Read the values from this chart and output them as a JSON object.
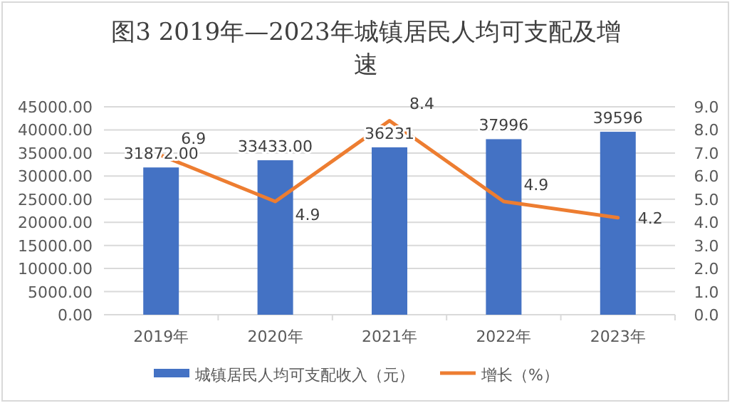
{
  "chart_data": {
    "type": "bar",
    "title": "图3 2019年—2023年城镇居民人均可支配及增速",
    "categories": [
      "2019年",
      "2020年",
      "2021年",
      "2022年",
      "2023年"
    ],
    "series": [
      {
        "name": "城镇居民人均可支配收入（元）",
        "color": "#4472c4",
        "values": [
          31872,
          33433,
          36231,
          37996,
          39596
        ],
        "value_labels": [
          "31872.00",
          "33433.00",
          "36231",
          "37996",
          "39596"
        ]
      },
      {
        "name": "增长（%）",
        "type": "line",
        "axis": "y2",
        "color": "#ed7d31",
        "values": [
          6.9,
          4.9,
          8.4,
          4.9,
          4.2
        ],
        "value_labels": [
          "6.9",
          "4.9",
          "8.4",
          "4.9",
          "4.2"
        ]
      }
    ],
    "ylim": [
      0,
      45000
    ],
    "yticks": [
      {
        "value": 0,
        "label": "0.00"
      },
      {
        "value": 5000,
        "label": "5000.00"
      },
      {
        "value": 10000,
        "label": "10000.00"
      },
      {
        "value": 15000,
        "label": "15000.00"
      },
      {
        "value": 20000,
        "label": "20000.00"
      },
      {
        "value": 25000,
        "label": "25000.00"
      },
      {
        "value": 30000,
        "label": "30000.00"
      },
      {
        "value": 35000,
        "label": "35000.00"
      },
      {
        "value": 40000,
        "label": "40000.00"
      },
      {
        "value": 45000,
        "label": "45000.00"
      }
    ],
    "y2lim": [
      0,
      9
    ],
    "y2ticks": [
      {
        "value": 0,
        "label": "0.0"
      },
      {
        "value": 1,
        "label": "1.0"
      },
      {
        "value": 2,
        "label": "2.0"
      },
      {
        "value": 3,
        "label": "3.0"
      },
      {
        "value": 4,
        "label": "4.0"
      },
      {
        "value": 5,
        "label": "5.0"
      },
      {
        "value": 6,
        "label": "6.0"
      },
      {
        "value": 7,
        "label": "7.0"
      },
      {
        "value": 8,
        "label": "8.0"
      },
      {
        "value": 9,
        "label": "9.0"
      }
    ],
    "grid": "y",
    "legend": "bottom",
    "marker": "none",
    "line_style": "solid"
  }
}
